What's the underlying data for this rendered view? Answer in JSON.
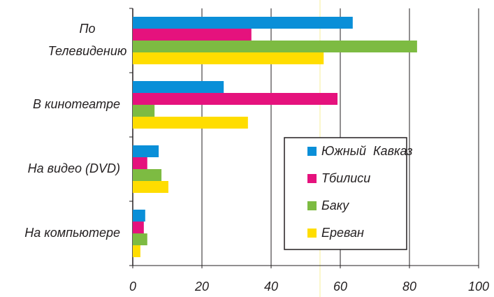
{
  "chart_data": {
    "type": "hbar",
    "categories": [
      [
        "По",
        "Телевидению"
      ],
      "В кинотеатре",
      "На видео  (DVD)",
      "На компьютере"
    ],
    "series": [
      {
        "name": "Южный  Кавказ",
        "color": "#0a8fd8",
        "values": [
          63.6,
          26.3,
          7.5,
          3.6
        ]
      },
      {
        "name": "Тбилиси",
        "color": "#e5127d",
        "values": [
          34.3,
          59.2,
          4.2,
          3.2
        ]
      },
      {
        "name": "Баку",
        "color": "#7dbb42",
        "values": [
          82.2,
          6.3,
          8.3,
          4.2
        ]
      },
      {
        "name": "Ереван",
        "color": "#ffdd00",
        "values": [
          55.2,
          33.3,
          10.3,
          2.2
        ]
      }
    ],
    "xlim": [
      0,
      100
    ],
    "xticks": [
      0,
      20,
      40,
      60,
      80,
      100
    ],
    "grid": true
  }
}
